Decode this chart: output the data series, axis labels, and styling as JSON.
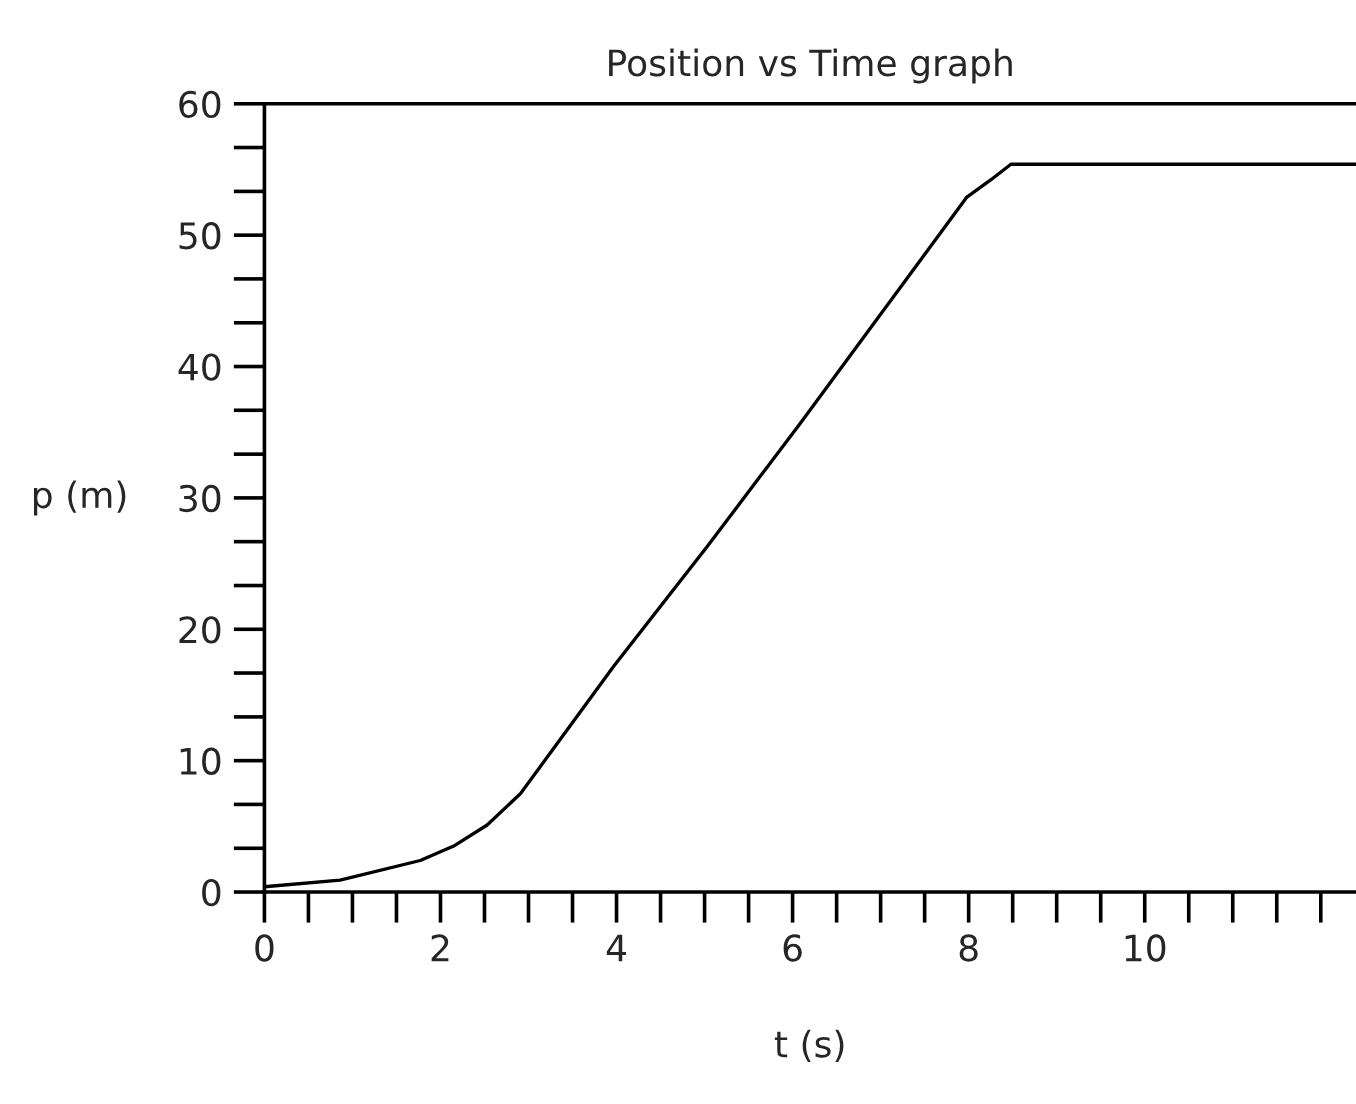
{
  "chart_data": {
    "type": "line",
    "title": "Position vs Time graph",
    "xlabel": "t (s)",
    "ylabel": "p (m)",
    "x": [
      0,
      0.86,
      1.77,
      2.15,
      2.53,
      2.91,
      3.97,
      5.03,
      6.09,
      7.98,
      8.25,
      8.48,
      12.4
    ],
    "series": [
      {
        "color": "#000000",
        "values": [
          0.4,
          0.9,
          2.4,
          3.5,
          5.1,
          7.5,
          17.2,
          26.3,
          35.7,
          52.9,
          54.2,
          55.4,
          55.4
        ]
      }
    ],
    "xlim": [
      0,
      12.4
    ],
    "ylim": [
      0,
      60
    ],
    "xticks": [
      0,
      {
        "value": 0.5,
        "label": null
      },
      {
        "value": 1,
        "label": null
      },
      {
        "value": 1.5,
        "label": null
      },
      2,
      {
        "value": 2.5,
        "label": null
      },
      {
        "value": 3,
        "label": null
      },
      {
        "value": 3.5,
        "label": null
      },
      4,
      {
        "value": 4.5,
        "label": null
      },
      {
        "value": 5,
        "label": null
      },
      {
        "value": 5.5,
        "label": null
      },
      6,
      {
        "value": 6.5,
        "label": null
      },
      {
        "value": 7,
        "label": null
      },
      {
        "value": 7.5,
        "label": null
      },
      8,
      {
        "value": 8.5,
        "label": null
      },
      {
        "value": 9,
        "label": null
      },
      {
        "value": 9.5,
        "label": null
      },
      10,
      {
        "value": 10.5,
        "label": null
      },
      {
        "value": 11,
        "label": null
      },
      {
        "value": 11.5,
        "label": null
      },
      {
        "value": 12,
        "label": null
      }
    ],
    "yticks": [
      0,
      {
        "value": 3.33,
        "label": null
      },
      {
        "value": 6.67,
        "label": null
      },
      10,
      {
        "value": 13.33,
        "label": null
      },
      {
        "value": 16.67,
        "label": null
      },
      20,
      {
        "value": 23.33,
        "label": null
      },
      {
        "value": 26.67,
        "label": null
      },
      30,
      {
        "value": 33.33,
        "label": null
      },
      {
        "value": 36.67,
        "label": null
      },
      40,
      {
        "value": 43.33,
        "label": null
      },
      {
        "value": 46.67,
        "label": null
      },
      50,
      {
        "value": 53.33,
        "label": null
      },
      {
        "value": 56.67,
        "label": null
      },
      60
    ],
    "grid": false,
    "legend": false,
    "marker": "none",
    "line_style": "solid"
  }
}
